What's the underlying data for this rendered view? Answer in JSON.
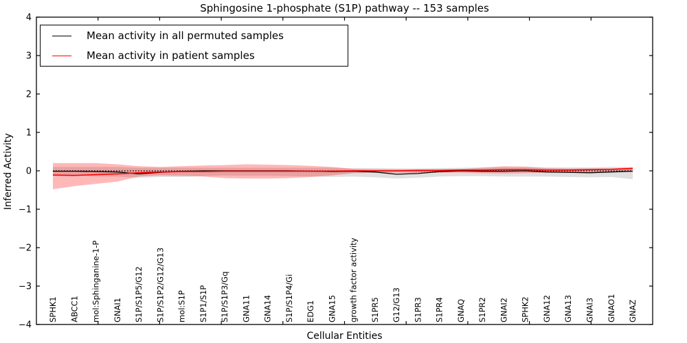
{
  "chart_data": {
    "type": "line",
    "title": "Sphingosine 1-phosphate (S1P) pathway -- 153 samples",
    "xlabel": "Cellular Entities",
    "ylabel": "Inferred Activity",
    "ylim": [
      -4,
      4
    ],
    "yticks": [
      4,
      3,
      2,
      1,
      0,
      -1,
      -2,
      -3,
      -4
    ],
    "grid": false,
    "legend_position": "upper left",
    "zero_reference_line": 0,
    "colors": {
      "permuted_line": "#000000",
      "patient_line": "#ff0000",
      "permuted_band": "#000000",
      "patient_band": "#ff0000",
      "axis": "#000000",
      "background": "#ffffff"
    },
    "legend": [
      {
        "label": "Mean activity in all permuted samples",
        "color": "#000000"
      },
      {
        "label": "Mean activity in patient samples",
        "color": "#ff0000"
      }
    ],
    "categories": [
      "SPHK1",
      "ABCC1",
      "mol:Sphinganine-1-P",
      "GNAI1",
      "S1P/S1P5/G12",
      "S1P/S1P2/G12/G13",
      "mol:S1P",
      "S1P1/S1P",
      "S1P/S1P3/Gq",
      "GNA11",
      "GNA14",
      "S1P/S1P4/Gi",
      "EDG1",
      "GNA15",
      "growth factor activity",
      "S1PR5",
      "G12/G13",
      "S1PR3",
      "S1PR4",
      "GNAQ",
      "S1PR2",
      "GNAI2",
      "SPHK2",
      "GNA12",
      "GNA13",
      "GNAI3",
      "GNAO1",
      "GNAZ"
    ],
    "series": [
      {
        "name": "Mean activity in all permuted samples",
        "color": "#000000",
        "width": 1.3,
        "values": [
          -0.01,
          -0.01,
          -0.02,
          -0.03,
          -0.08,
          -0.04,
          -0.01,
          0,
          0,
          0,
          0,
          0,
          -0.01,
          -0.02,
          -0.01,
          -0.03,
          -0.09,
          -0.07,
          -0.02,
          0,
          -0.01,
          -0.01,
          0,
          -0.03,
          -0.04,
          -0.05,
          -0.03,
          -0.01
        ]
      },
      {
        "name": "Mean activity in patient samples",
        "color": "#ff0000",
        "width": 1.6,
        "values": [
          -0.11,
          -0.12,
          -0.1,
          -0.08,
          -0.05,
          -0.03,
          -0.02,
          -0.02,
          -0.01,
          -0.01,
          -0.01,
          -0.01,
          -0.01,
          -0.01,
          0,
          0,
          0,
          0.01,
          0.01,
          0.02,
          0.02,
          0.03,
          0.03,
          0.02,
          0.02,
          0.03,
          0.04,
          0.06
        ]
      }
    ],
    "bands": [
      {
        "name": "permuted-range",
        "color": "#000000",
        "opacity": 0.12,
        "upper": [
          0.1,
          0.1,
          0.1,
          0.1,
          0.08,
          0.08,
          0.08,
          0.08,
          0.08,
          0.08,
          0.08,
          0.08,
          0.08,
          0.08,
          0.07,
          0.07,
          0.06,
          0.06,
          0.07,
          0.08,
          0.09,
          0.09,
          0.09,
          0.09,
          0.09,
          0.09,
          0.1,
          0.1
        ],
        "lower": [
          -0.12,
          -0.12,
          -0.14,
          -0.15,
          -0.18,
          -0.16,
          -0.16,
          -0.14,
          -0.12,
          -0.13,
          -0.13,
          -0.14,
          -0.15,
          -0.16,
          -0.15,
          -0.17,
          -0.2,
          -0.18,
          -0.15,
          -0.14,
          -0.14,
          -0.15,
          -0.15,
          -0.15,
          -0.16,
          -0.17,
          -0.16,
          -0.22
        ]
      },
      {
        "name": "patient-range",
        "color": "#ff0000",
        "opacity": 0.28,
        "upper": [
          0.2,
          0.2,
          0.2,
          0.17,
          0.12,
          0.1,
          0.12,
          0.14,
          0.15,
          0.17,
          0.16,
          0.15,
          0.13,
          0.1,
          0.05,
          0.04,
          0.04,
          0.04,
          0.04,
          0.05,
          0.08,
          0.12,
          0.11,
          0.07,
          0.06,
          0.06,
          0.06,
          0.09
        ],
        "lower": [
          -0.48,
          -0.4,
          -0.34,
          -0.28,
          -0.15,
          -0.12,
          -0.13,
          -0.15,
          -0.19,
          -0.2,
          -0.2,
          -0.19,
          -0.16,
          -0.12,
          -0.06,
          -0.05,
          -0.05,
          -0.05,
          -0.05,
          -0.05,
          -0.06,
          -0.07,
          -0.06,
          -0.05,
          -0.04,
          -0.04,
          -0.03,
          -0.02
        ]
      }
    ]
  }
}
